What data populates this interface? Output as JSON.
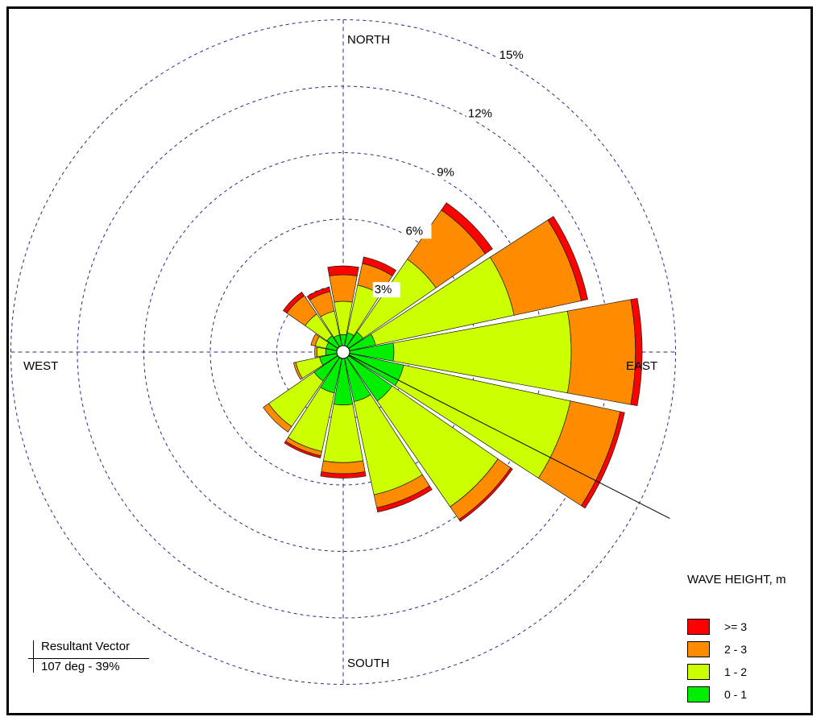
{
  "chart_data": {
    "type": "polar-stacked-bar",
    "direction_labels": {
      "north": "NORTH",
      "east": "EAST",
      "south": "SOUTH",
      "west": "WEST"
    },
    "ring_labels": [
      "3%",
      "6%",
      "9%",
      "12%",
      "15%"
    ],
    "rings": [
      3,
      6,
      9,
      12,
      15
    ],
    "sector_width_deg": 22.5,
    "resultant_vector": {
      "title": "Resultant Vector",
      "value": "107 deg - 39%",
      "direction_deg": 107
    },
    "legend_title": "WAVE HEIGHT, m",
    "categories": [
      ">= 3",
      "2 - 3",
      "1 - 2",
      "0 - 1"
    ],
    "colors": {
      ">= 3": "#ff0000",
      "2 - 3": "#ff8c00",
      "1 - 2": "#ccff00",
      "0 - 1": "#00ee00"
    },
    "sectors": [
      {
        "direction_deg": 0,
        "bins": {
          "0 - 1": 0.5,
          "1 - 2": 1.5,
          "2 - 3": 1.2,
          ">= 3": 0.4
        }
      },
      {
        "direction_deg": 22.5,
        "bins": {
          "0 - 1": 0.6,
          "1 - 2": 2.2,
          "2 - 3": 1.0,
          ">= 3": 0.3
        }
      },
      {
        "direction_deg": 45,
        "bins": {
          "0 - 1": 0.8,
          "1 - 2": 4.0,
          "2 - 3": 2.7,
          ">= 3": 0.4
        }
      },
      {
        "direction_deg": 67.5,
        "bins": {
          "0 - 1": 1.2,
          "1 - 2": 6.4,
          "2 - 3": 3.1,
          ">= 3": 0.3
        }
      },
      {
        "direction_deg": 90,
        "bins": {
          "0 - 1": 2.0,
          "1 - 2": 8.0,
          "2 - 3": 2.9,
          ">= 3": 0.3
        }
      },
      {
        "direction_deg": 112.5,
        "bins": {
          "0 - 1": 2.5,
          "1 - 2": 7.7,
          "2 - 3": 2.3,
          ">= 3": 0.2
        }
      },
      {
        "direction_deg": 135,
        "bins": {
          "0 - 1": 2.4,
          "1 - 2": 5.8,
          "2 - 3": 0.7,
          ">= 3": 0.1
        }
      },
      {
        "direction_deg": 157.5,
        "bins": {
          "0 - 1": 2.0,
          "1 - 2": 4.3,
          "2 - 3": 0.6,
          ">= 3": 0.2
        }
      },
      {
        "direction_deg": 180,
        "bins": {
          "0 - 1": 2.1,
          "1 - 2": 2.6,
          "2 - 3": 0.5,
          ">= 3": 0.2
        }
      },
      {
        "direction_deg": 202.5,
        "bins": {
          "0 - 1": 1.6,
          "1 - 2": 2.7,
          "2 - 3": 0.2,
          ">= 3": 0.1
        }
      },
      {
        "direction_deg": 225,
        "bins": {
          "0 - 1": 1.3,
          "1 - 2": 2.5,
          "2 - 3": 0.3,
          ">= 3": 0.0
        }
      },
      {
        "direction_deg": 247.5,
        "bins": {
          "0 - 1": 0.8,
          "1 - 2": 1.1,
          "2 - 3": 0.1,
          ">= 3": 0.0
        }
      },
      {
        "direction_deg": 270,
        "bins": {
          "0 - 1": 0.5,
          "1 - 2": 0.4,
          "2 - 3": 0.1,
          ">= 3": 0.0
        }
      },
      {
        "direction_deg": 292.5,
        "bins": {
          "0 - 1": 0.5,
          "1 - 2": 0.5,
          "2 - 3": 0.2,
          ">= 3": 0.0
        }
      },
      {
        "direction_deg": 315,
        "bins": {
          "0 - 1": 0.6,
          "1 - 2": 1.2,
          "2 - 3": 1.0,
          ">= 3": 0.2
        }
      },
      {
        "direction_deg": 337.5,
        "bins": {
          "0 - 1": 0.5,
          "1 - 2": 1.1,
          "2 - 3": 0.9,
          ">= 3": 0.2
        }
      }
    ]
  }
}
